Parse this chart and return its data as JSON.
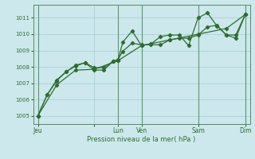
{
  "background_color": "#cce8ec",
  "grid_color": "#aad0d8",
  "line_color": "#2d6e2d",
  "marker_color": "#2d6e2d",
  "title": "Pression niveau de la mer( hPa )",
  "ylim": [
    1004.5,
    1011.8
  ],
  "yticks": [
    1005,
    1006,
    1007,
    1008,
    1009,
    1010,
    1011
  ],
  "xlim": [
    0,
    46
  ],
  "xtick_positions": [
    1,
    13,
    18,
    23,
    35,
    45
  ],
  "xtick_labels": [
    "Jeu",
    "",
    "Lun",
    "Ven",
    "Sam",
    "Dim"
  ],
  "vline_positions": [
    1,
    18,
    23,
    35,
    45
  ],
  "series1_x": [
    1,
    3,
    5,
    7,
    9,
    11,
    13,
    15,
    17,
    18,
    19,
    21,
    23,
    25,
    27,
    29,
    31,
    33,
    35,
    37,
    39,
    41,
    43,
    45
  ],
  "series1_y": [
    1005.0,
    1006.3,
    1007.2,
    1007.7,
    1008.1,
    1008.25,
    1007.8,
    1007.8,
    1008.35,
    1008.4,
    1009.5,
    1010.2,
    1009.3,
    1009.4,
    1009.85,
    1009.95,
    1009.95,
    1009.3,
    1011.0,
    1011.3,
    1010.5,
    1009.95,
    1009.95,
    1011.2
  ],
  "series2_x": [
    1,
    3,
    5,
    7,
    9,
    11,
    13,
    15,
    17,
    18,
    19,
    21,
    23,
    25,
    27,
    29,
    31,
    33,
    35,
    37,
    39,
    41,
    43,
    45
  ],
  "series2_y": [
    1005.0,
    1006.3,
    1007.15,
    1007.7,
    1008.05,
    1008.25,
    1007.95,
    1007.95,
    1008.35,
    1008.45,
    1008.95,
    1009.45,
    1009.35,
    1009.35,
    1009.35,
    1009.65,
    1009.75,
    1009.75,
    1009.95,
    1010.45,
    1010.55,
    1009.95,
    1009.75,
    1011.2
  ],
  "series3_x": [
    1,
    5,
    9,
    13,
    18,
    23,
    29,
    35,
    41,
    45
  ],
  "series3_y": [
    1005.0,
    1006.9,
    1007.8,
    1007.85,
    1008.38,
    1009.3,
    1009.65,
    1010.0,
    1010.35,
    1011.2
  ]
}
